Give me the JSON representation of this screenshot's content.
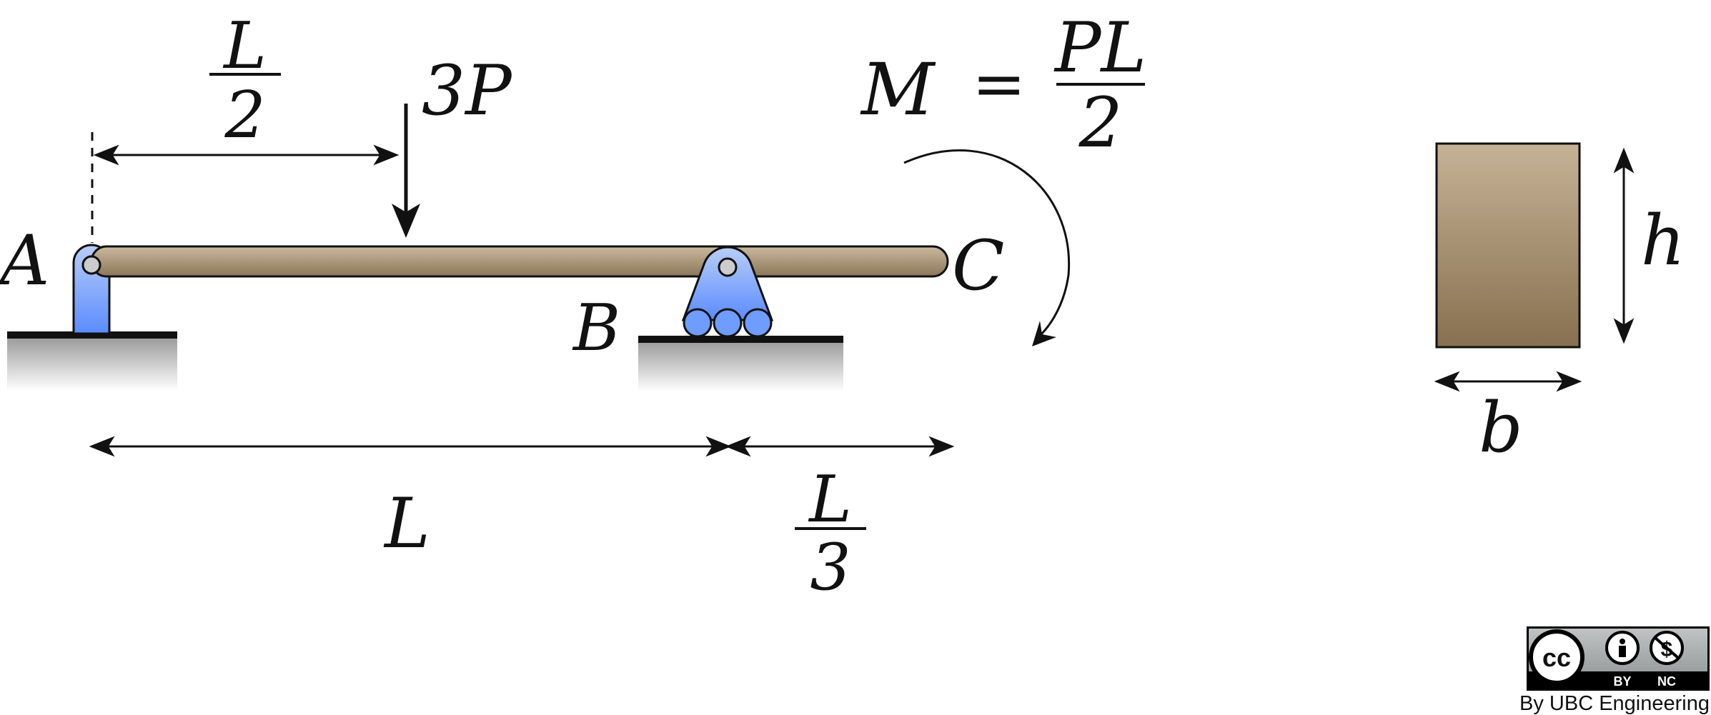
{
  "labels": {
    "point_a": "A",
    "point_b": "B",
    "point_c": "C",
    "load": "3P",
    "moment_symbol": "M",
    "equals": "=",
    "moment_numerator": "PL",
    "moment_denominator": "2",
    "half_span_numerator": "L",
    "half_span_denominator": "2",
    "span_length": "L",
    "overhang_numerator": "L",
    "overhang_denominator": "3",
    "section_height": "h",
    "section_width": "b"
  },
  "license": {
    "cc_mark": "cc",
    "by_label": "BY",
    "nc_label": "NC",
    "credit": "By UBC Engineering"
  },
  "colors": {
    "beam": "#9c8a70",
    "support": "#6e9cff",
    "section": "#a8916f",
    "ground": "#111111"
  },
  "icons": {
    "license_badge": "creative-commons-by-nc-icon"
  }
}
